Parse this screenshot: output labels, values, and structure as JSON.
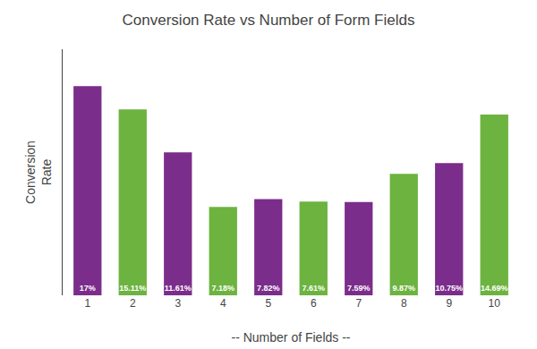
{
  "chart_data": {
    "type": "bar",
    "title": "Conversion Rate vs Number of Form Fields",
    "xlabel": "-- Number of Fields --",
    "ylabel": "Conversion\nRate",
    "categories": [
      1,
      2,
      3,
      4,
      5,
      6,
      7,
      8,
      9,
      10
    ],
    "values": [
      17.0,
      15.11,
      11.61,
      7.18,
      7.82,
      7.61,
      7.59,
      9.87,
      10.75,
      14.69
    ],
    "value_labels": [
      "17%",
      "15.11%",
      "11.61%",
      "7.18%",
      "7.82%",
      "7.61%",
      "7.59%",
      "9.87%",
      "10.75%",
      "14.69%"
    ],
    "data_labels": true,
    "colors": [
      "#7b2d8b",
      "#6db33f",
      "#7b2d8b",
      "#6db33f",
      "#7b2d8b",
      "#6db33f",
      "#7b2d8b",
      "#6db33f",
      "#7b2d8b",
      "#6db33f"
    ],
    "ylim": [
      0,
      20
    ],
    "tick_labels": "x",
    "grid": false
  }
}
